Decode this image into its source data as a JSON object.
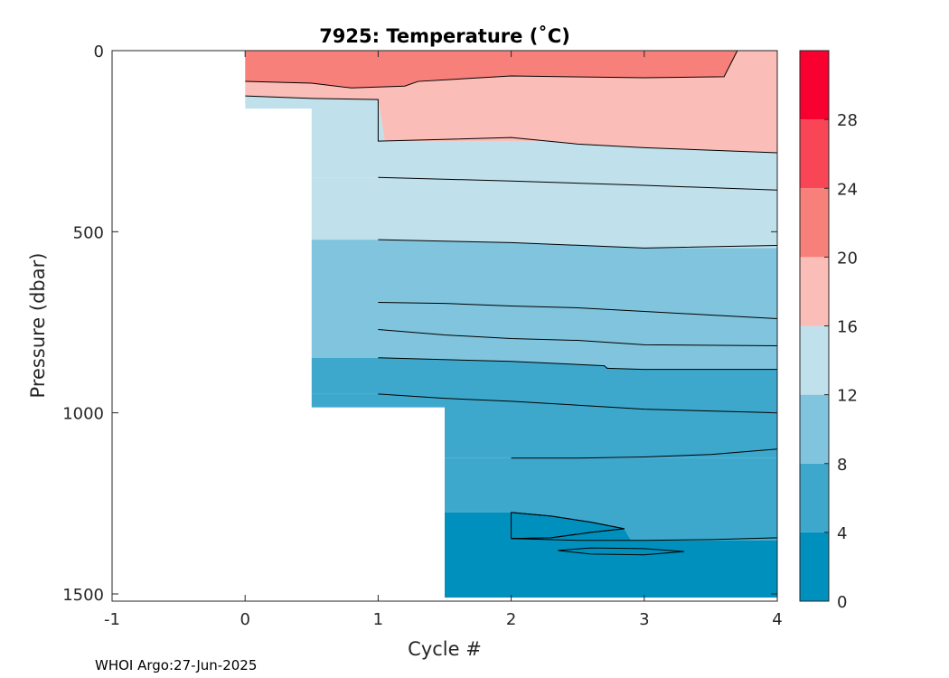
{
  "chart_data": {
    "type": "heatmap",
    "title": "7925:  Temperature (˚C)",
    "xlabel": "Cycle #",
    "ylabel": "Pressure (dbar)",
    "xlim": [
      -1,
      4
    ],
    "ylim": [
      1520,
      0
    ],
    "y_reversed": true,
    "x_ticks": [
      "-1",
      "0",
      "1",
      "2",
      "3",
      "4"
    ],
    "y_ticks": [
      "0",
      "500",
      "1000",
      "1500"
    ],
    "grid": false,
    "colorbar": {
      "range": [
        0,
        32
      ],
      "levels": [
        0,
        4,
        8,
        12,
        16,
        20,
        24,
        28,
        32
      ],
      "tick_labels": [
        "0",
        "4",
        "8",
        "12",
        "16",
        "20",
        "24",
        "28"
      ],
      "colors": [
        "#0090bd",
        "#3ea8cc",
        "#80c4de",
        "#c0e0ec",
        "#fbbdb7",
        "#f8807a",
        "#f84656",
        "#f80030"
      ]
    },
    "profiles": [
      {
        "cycle": 0,
        "max_pressure": 160
      },
      {
        "cycle": 1,
        "max_pressure": 985
      },
      {
        "cycle": 2,
        "max_pressure": 1510
      },
      {
        "cycle": 3,
        "max_pressure": 1510
      },
      {
        "cycle": 4,
        "max_pressure": 1510
      }
    ],
    "isotherms": [
      {
        "temperature_c": 20,
        "x": [
          0,
          0.5,
          0.8,
          1.2,
          1.3,
          2,
          3,
          3.6,
          3.7
        ],
        "pressure": [
          85,
          90,
          103,
          98,
          85,
          70,
          75,
          72,
          0
        ]
      },
      {
        "temperature_c": 16,
        "x": [
          0,
          0.5,
          1.0,
          1.0,
          2.0,
          2.5,
          3,
          4
        ],
        "pressure": [
          125,
          132,
          135,
          250,
          240,
          258,
          268,
          282
        ]
      },
      {
        "temperature_c": 14,
        "x": [
          1,
          2,
          3,
          4
        ],
        "pressure": [
          350,
          360,
          372,
          385
        ]
      },
      {
        "temperature_c": 12,
        "x": [
          1,
          2,
          3,
          4
        ],
        "pressure": [
          522,
          530,
          545,
          538
        ]
      },
      {
        "temperature_c": 10,
        "x": [
          1,
          1.5,
          2,
          2.5,
          3,
          3.5,
          4
        ],
        "pressure": [
          695,
          698,
          705,
          710,
          720,
          730,
          740
        ]
      },
      {
        "temperature_c": 9,
        "x": [
          1,
          1.5,
          2,
          2.5,
          3,
          4
        ],
        "pressure": [
          770,
          785,
          795,
          800,
          812,
          815
        ]
      },
      {
        "temperature_c": 8,
        "x": [
          1,
          2,
          2.7,
          2.72,
          3,
          4
        ],
        "pressure": [
          848,
          858,
          870,
          877,
          880,
          880
        ]
      },
      {
        "temperature_c": 7,
        "x": [
          1,
          1.5,
          2,
          3,
          4
        ],
        "pressure": [
          948,
          960,
          968,
          990,
          1000
        ]
      },
      {
        "temperature_c": 6,
        "x": [
          2,
          2.5,
          3,
          3.5,
          4
        ],
        "pressure": [
          1125,
          1125,
          1122,
          1115,
          1100
        ]
      },
      {
        "temperature_c": 4,
        "x": [
          2,
          2.3,
          2.6,
          2.85,
          2.6,
          2.3,
          2,
          2.5,
          3,
          3.5,
          4
        ],
        "pressure": [
          1275,
          1285,
          1302,
          1320,
          1330,
          1345,
          1347,
          1352,
          1352,
          1350,
          1345
        ]
      }
    ],
    "cold_patches": [
      {
        "x": [
          2,
          2.3,
          2.6,
          2.85,
          2.6,
          2.3,
          2
        ],
        "pressure": [
          1275,
          1285,
          1302,
          1320,
          1330,
          1345,
          1347
        ]
      },
      {
        "x": [
          2.35,
          2.6,
          3,
          3.3,
          3.0,
          2.6,
          2.35
        ],
        "pressure": [
          1380,
          1373,
          1375,
          1383,
          1392,
          1390,
          1380
        ]
      }
    ]
  },
  "credit": "WHOI Argo:27-Jun-2025"
}
